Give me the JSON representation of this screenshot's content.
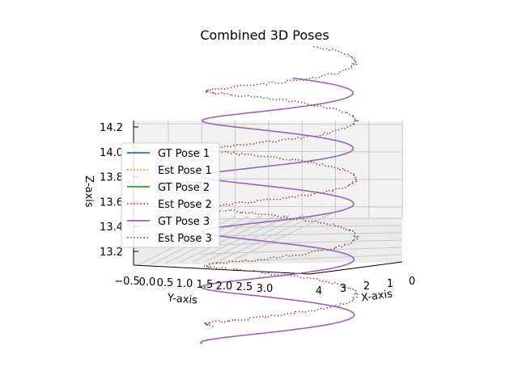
{
  "chart_data": {
    "type": "line",
    "projection": "3d",
    "title": "Combined 3D Poses",
    "xlabel": "X-axis",
    "ylabel": "Y-axis",
    "zlabel": "Z-axis",
    "x_ticks": [
      "0",
      "1",
      "2",
      "3",
      "4"
    ],
    "y_ticks": [
      "−0.5",
      "0.0",
      "0.5",
      "1.0",
      "1.5",
      "2.0",
      "2.5",
      "3.0"
    ],
    "z_ticks": [
      "13.2",
      "13.4",
      "13.6",
      "13.8",
      "14.0",
      "14.2"
    ],
    "zlim": [
      13.15,
      14.25
    ],
    "grid": true,
    "legend_position": "left",
    "series": [
      {
        "name": "GT Pose 1",
        "style": "solid",
        "color": "#1f77b4",
        "visible_in_plot": false
      },
      {
        "name": "Est Pose 1",
        "style": "dotted",
        "color": "#ff7f0e",
        "visible_in_plot": false
      },
      {
        "name": "GT Pose 2",
        "style": "solid",
        "color": "#2ca02c",
        "visible_in_plot": false
      },
      {
        "name": "Est Pose 2",
        "style": "dotted",
        "color": "#d62728",
        "visible_in_plot": false
      },
      {
        "name": "GT Pose 3",
        "style": "solid",
        "color": "#9467bd",
        "shape": "helix"
      },
      {
        "name": "Est Pose 3",
        "style": "dotted",
        "color": "#8c564b",
        "shape": "noisy helix"
      }
    ]
  }
}
